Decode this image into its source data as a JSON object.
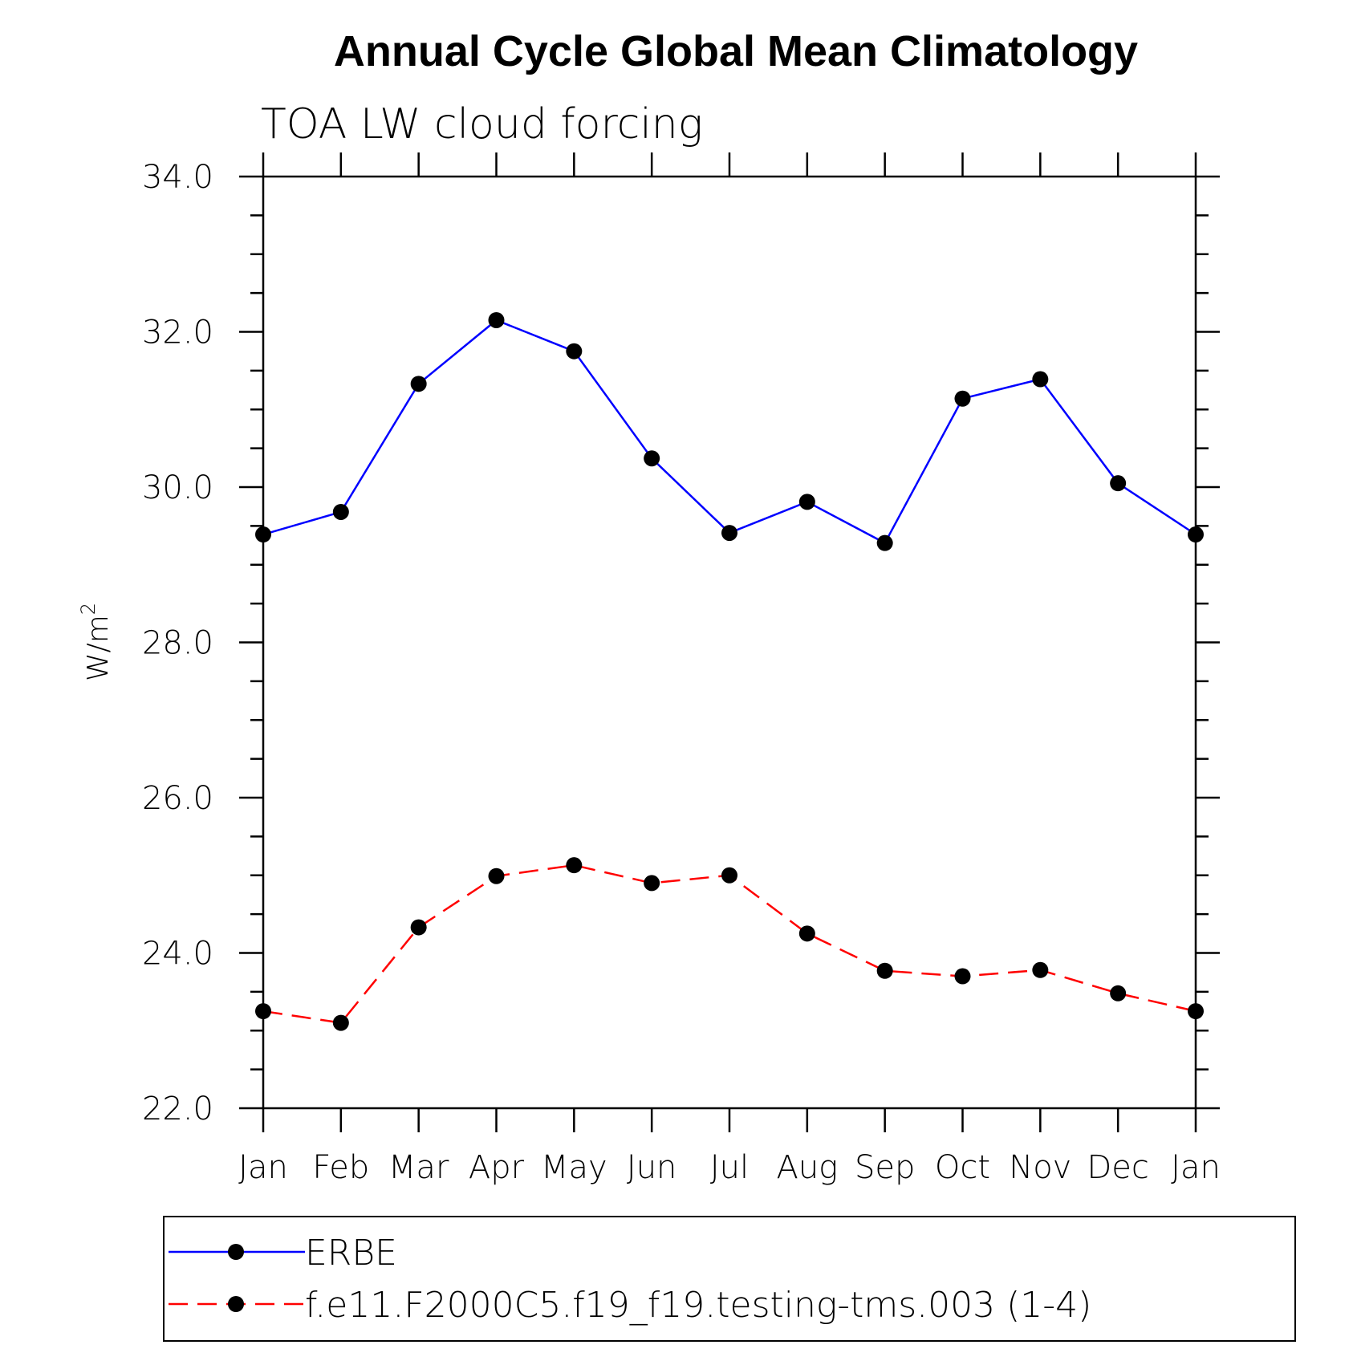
{
  "chart_data": {
    "type": "line",
    "title": "Annual Cycle Global Mean Climatology",
    "subtitle": "TOA LW cloud forcing",
    "ylabel": "W/m",
    "ylabel_superscript": "2",
    "xlabel": "",
    "categories": [
      "Jan",
      "Feb",
      "Mar",
      "Apr",
      "May",
      "Jun",
      "Jul",
      "Aug",
      "Sep",
      "Oct",
      "Nov",
      "Dec",
      "Jan"
    ],
    "ylim": [
      22.0,
      34.0
    ],
    "yticks": [
      "22.0",
      "24.0",
      "26.0",
      "28.0",
      "30.0",
      "32.0",
      "34.0"
    ],
    "ytick_values": [
      22,
      24,
      26,
      28,
      30,
      32,
      34
    ],
    "grid": false,
    "legend_position": "bottom",
    "series": [
      {
        "name": "ERBE",
        "color": "#0000ff",
        "line_style": "solid",
        "marker": "filled-circle",
        "values": [
          29.39,
          29.68,
          31.33,
          32.15,
          31.75,
          30.37,
          29.41,
          29.81,
          29.28,
          31.14,
          31.39,
          30.05,
          29.39
        ]
      },
      {
        "name": "f.e11.F2000C5.f19_f19.testing-tms.003 (1-4)",
        "color": "#ff0000",
        "line_style": "dashed",
        "marker": "filled-circle",
        "values": [
          23.25,
          23.1,
          24.33,
          24.99,
          25.13,
          24.9,
          25.0,
          24.25,
          23.77,
          23.7,
          23.78,
          23.48,
          23.25
        ]
      }
    ]
  }
}
